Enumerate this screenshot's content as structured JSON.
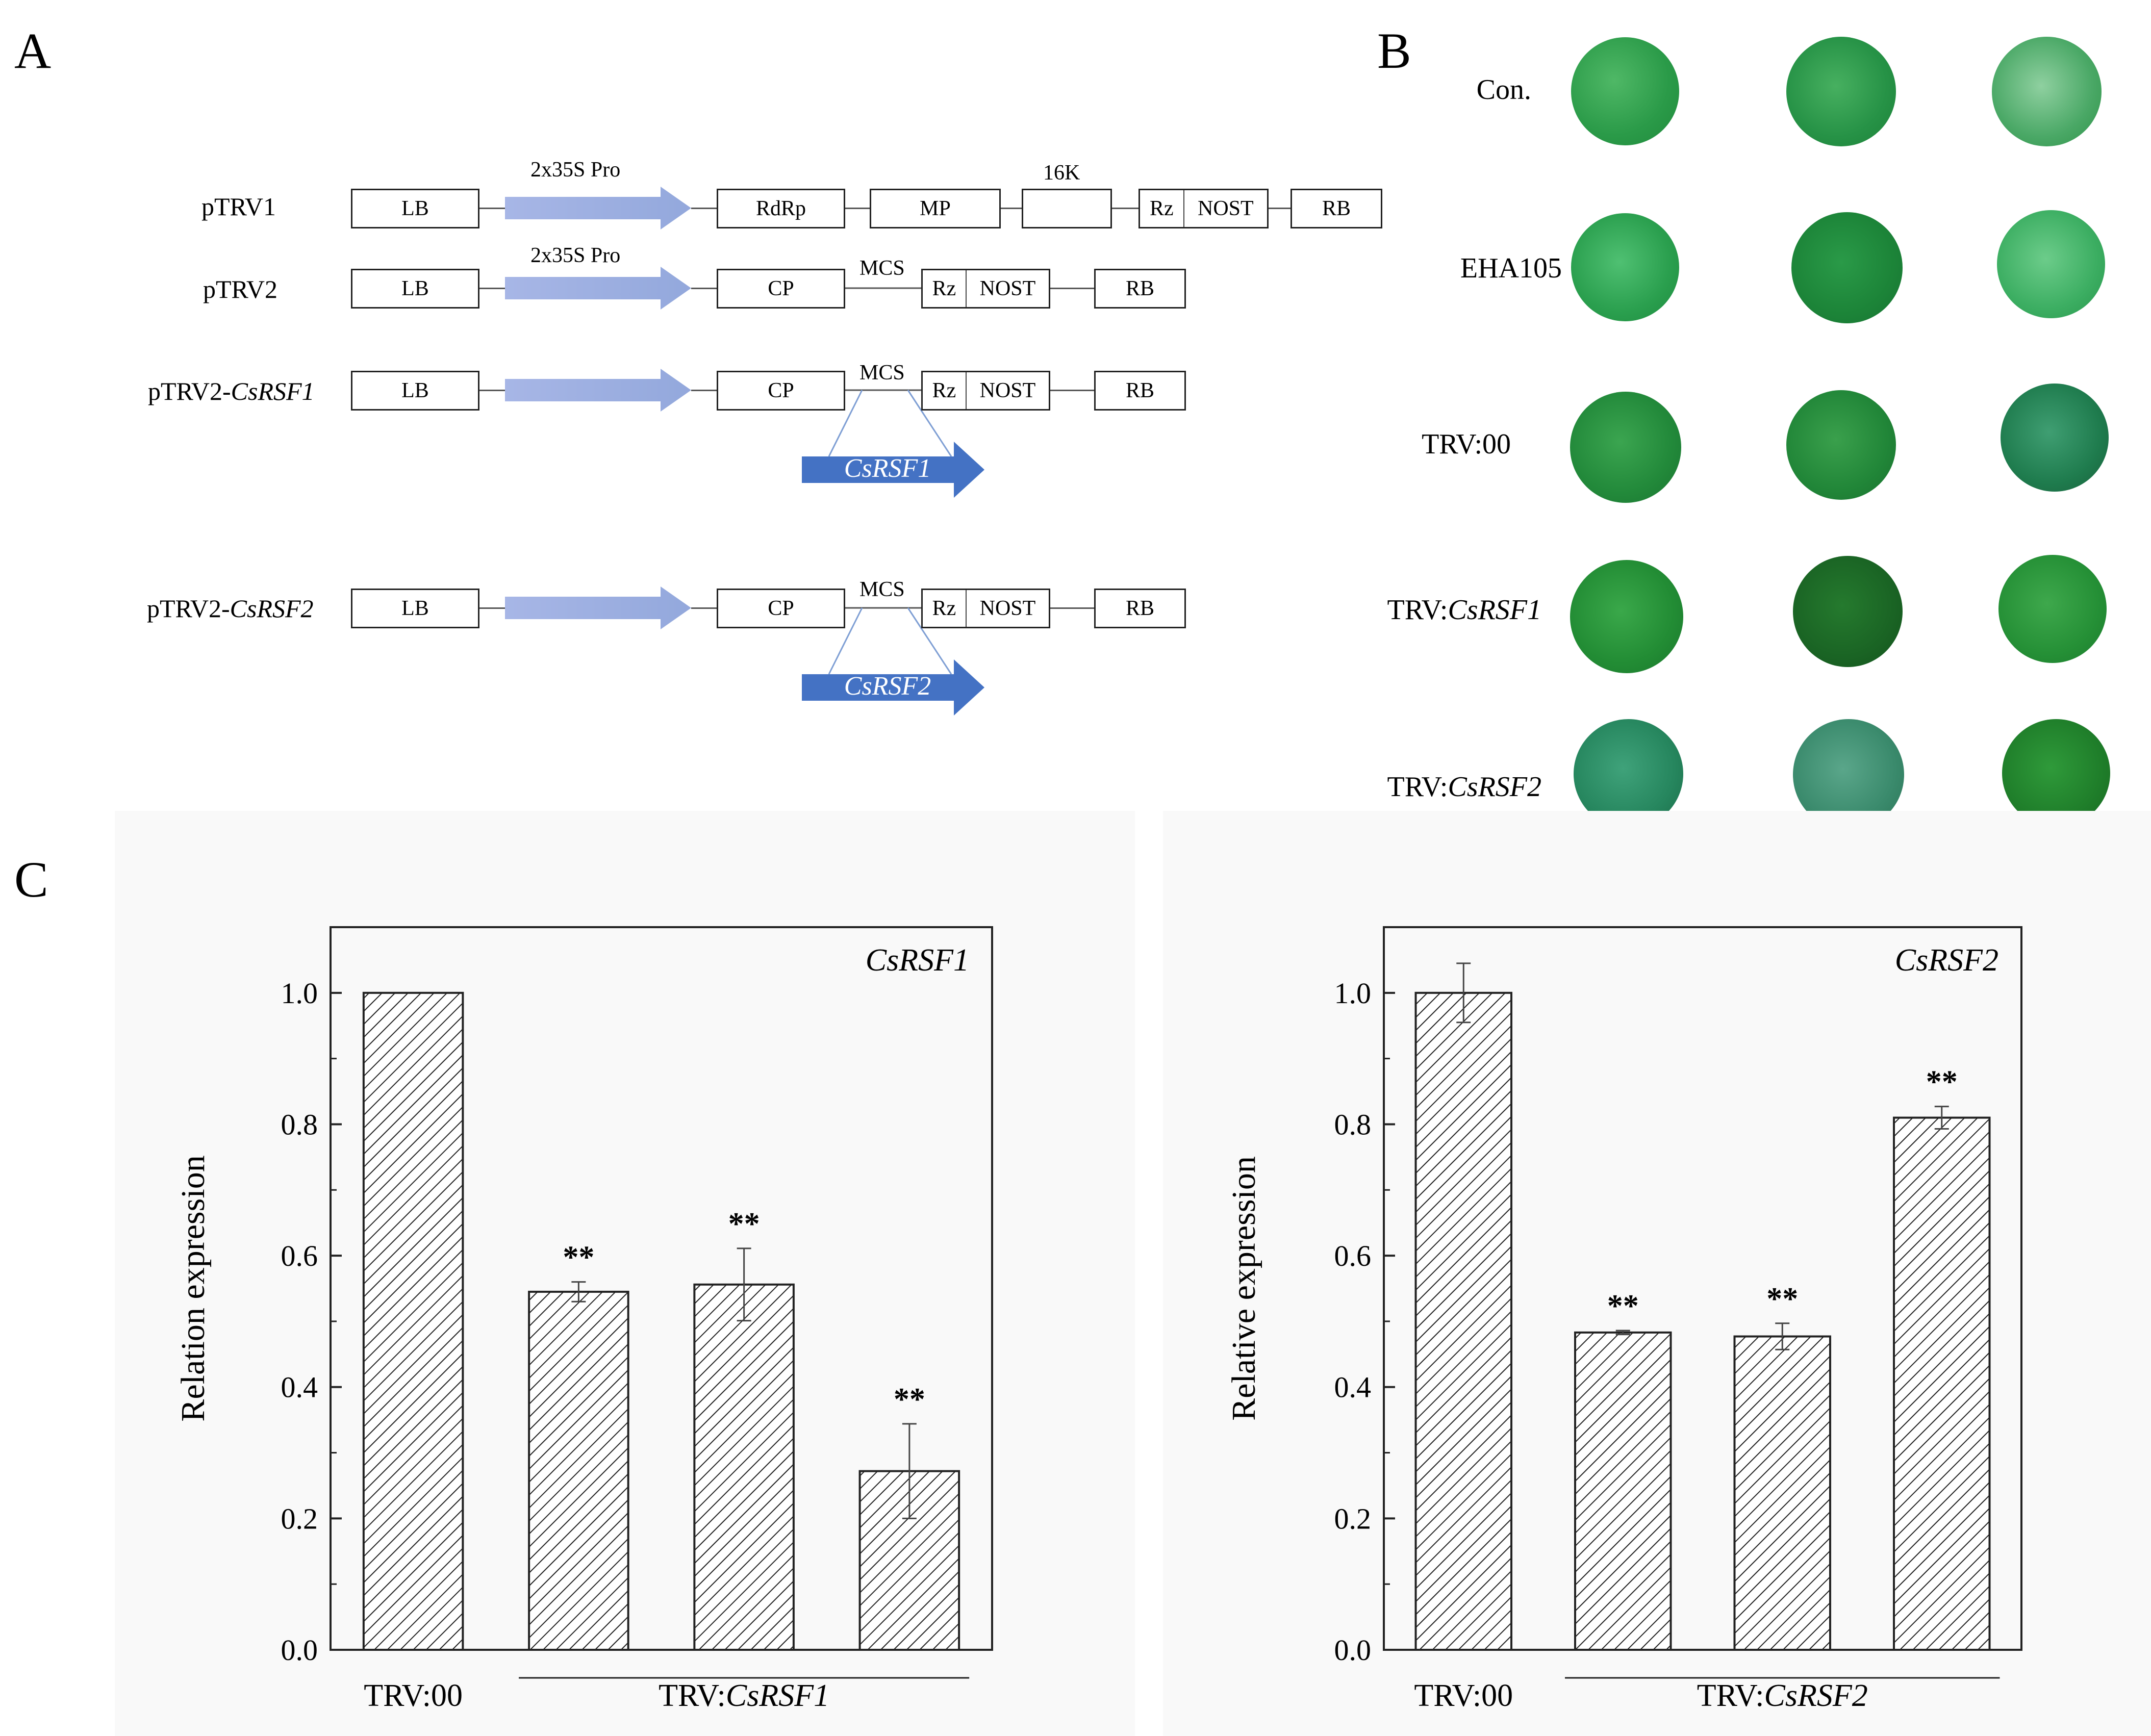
{
  "panel_labels": {
    "a": "A",
    "b": "B",
    "c": "C"
  },
  "panel_a": {
    "vectors": [
      {
        "name": "pTRV1",
        "name_gene": "",
        "promoter": "2x35S Pro",
        "elements": {
          "lb": "LB",
          "e1": "RdRp",
          "e2": "MP",
          "e3_label": "16K",
          "rz": "Rz",
          "nost": "NOST",
          "rb": "RB"
        }
      },
      {
        "name": "pTRV2",
        "name_gene": "",
        "promoter": "2x35S Pro",
        "elements": {
          "lb": "LB",
          "cp": "CP",
          "mcs": "MCS",
          "rz": "Rz",
          "nost": "NOST",
          "rb": "RB"
        }
      },
      {
        "name": "pTRV2-",
        "name_gene": "CsRSF1",
        "insert": "CsRSF1",
        "elements": {
          "lb": "LB",
          "cp": "CP",
          "mcs": "MCS",
          "rz": "Rz",
          "nost": "NOST",
          "rb": "RB"
        }
      },
      {
        "name": "pTRV2-",
        "name_gene": "CsRSF2",
        "insert": "CsRSF2",
        "elements": {
          "lb": "LB",
          "cp": "CP",
          "mcs": "MCS",
          "rz": "Rz",
          "nost": "NOST",
          "rb": "RB"
        }
      }
    ],
    "colors": {
      "promoter_arrow": "#9fb0e0",
      "insert_arrow": "#4472c4"
    }
  },
  "panel_b": {
    "rows": [
      {
        "label": "Con.",
        "label_gene": ""
      },
      {
        "label": "EHA105",
        "label_gene": ""
      },
      {
        "label": "TRV:00",
        "label_gene": ""
      },
      {
        "label": "TRV:",
        "label_gene": "CsRSF1"
      },
      {
        "label": "TRV:",
        "label_gene": "CsRSF2"
      }
    ]
  },
  "chart_data": [
    {
      "type": "bar",
      "title": "CsRSF1",
      "ylabel": "Relation expression",
      "ylim": [
        0,
        1.1
      ],
      "yticks": [
        "0.0",
        "0.2",
        "0.4",
        "0.6",
        "0.8",
        "1.0"
      ],
      "values": [
        1.0,
        0.545,
        0.556,
        0.272
      ],
      "errors": [
        0.0,
        0.015,
        0.055,
        0.072
      ],
      "significance": [
        "",
        "**",
        "**",
        "**"
      ],
      "group_labels": {
        "control": "TRV:00",
        "treatment_prefix": "TRV:",
        "treatment_gene": "CsRSF1"
      }
    },
    {
      "type": "bar",
      "title": "CsRSF2",
      "ylabel": "Relative expression",
      "ylim": [
        0,
        1.1
      ],
      "yticks": [
        "0.0",
        "0.2",
        "0.4",
        "0.6",
        "0.8",
        "1.0"
      ],
      "values": [
        1.0,
        0.483,
        0.477,
        0.81
      ],
      "errors": [
        0.045,
        0.003,
        0.02,
        0.017
      ],
      "significance": [
        "",
        "**",
        "**",
        "**"
      ],
      "group_labels": {
        "control": "TRV:00",
        "treatment_prefix": "TRV:",
        "treatment_gene": "CsRSF2"
      }
    }
  ]
}
